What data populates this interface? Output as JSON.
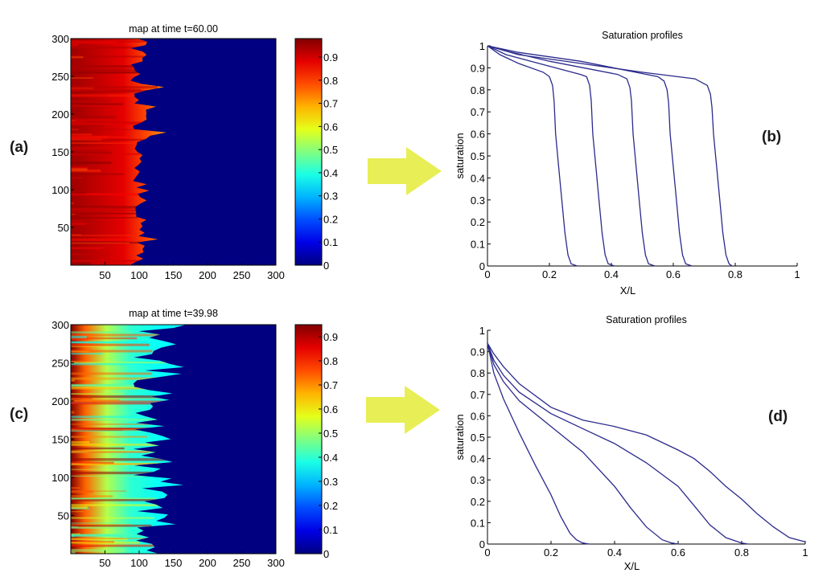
{
  "panel_labels": {
    "a": "(a)",
    "b": "(b)",
    "c": "(c)",
    "d": "(d)"
  },
  "arrow_color": "#e8ee55",
  "profile_color": "#2a2a8c",
  "chart_data": [
    {
      "id": "a",
      "type": "heatmap",
      "title": "map at time t=60.00",
      "x_ticks": [
        "50",
        "100",
        "150",
        "200",
        "250",
        "300"
      ],
      "y_ticks": [
        "300",
        "250",
        "200",
        "150",
        "100",
        "50"
      ],
      "xlim": [
        0,
        300
      ],
      "ylim": [
        0,
        300
      ],
      "colorbar": {
        "min": 0,
        "max": 0.98,
        "ticks": [
          "0.9",
          "0.8",
          "0.7",
          "0.6",
          "0.5",
          "0.4",
          "0.3",
          "0.2",
          "0.1",
          "0"
        ],
        "colormap": "jet"
      },
      "front_x_approx": 100,
      "front_x_max": 140,
      "filled_value_range": [
        0.75,
        0.98
      ],
      "background_value": 0
    },
    {
      "id": "b",
      "type": "line",
      "title": "Saturation profiles",
      "xlabel": "X/L",
      "ylabel": "saturation",
      "x_ticks": [
        "0",
        "0.2",
        "0.4",
        "0.6",
        "0.8",
        "1"
      ],
      "y_ticks": [
        "1",
        "0.9",
        "0.8",
        "0.7",
        "0.6",
        "0.5",
        "0.4",
        "0.3",
        "0.2",
        "0.1",
        "0"
      ],
      "xlim": [
        0,
        1
      ],
      "ylim": [
        0,
        1
      ],
      "series": [
        {
          "x": [
            0,
            0.04,
            0.1,
            0.18,
            0.2,
            0.21,
            0.215,
            0.22,
            0.23,
            0.24,
            0.25,
            0.26,
            0.27,
            0.29
          ],
          "y": [
            1,
            0.96,
            0.92,
            0.88,
            0.86,
            0.82,
            0.75,
            0.6,
            0.45,
            0.3,
            0.15,
            0.05,
            0.01,
            0
          ]
        },
        {
          "x": [
            0,
            0.06,
            0.14,
            0.3,
            0.32,
            0.33,
            0.335,
            0.34,
            0.35,
            0.36,
            0.37,
            0.38,
            0.39,
            0.41
          ],
          "y": [
            1,
            0.96,
            0.93,
            0.87,
            0.86,
            0.82,
            0.75,
            0.6,
            0.45,
            0.3,
            0.15,
            0.05,
            0.01,
            0
          ]
        },
        {
          "x": [
            0,
            0.08,
            0.2,
            0.42,
            0.45,
            0.46,
            0.465,
            0.47,
            0.48,
            0.49,
            0.5,
            0.51,
            0.52,
            0.54
          ],
          "y": [
            1,
            0.97,
            0.93,
            0.87,
            0.85,
            0.81,
            0.75,
            0.6,
            0.45,
            0.3,
            0.15,
            0.05,
            0.01,
            0
          ]
        },
        {
          "x": [
            0,
            0.1,
            0.3,
            0.55,
            0.57,
            0.58,
            0.585,
            0.59,
            0.6,
            0.61,
            0.62,
            0.63,
            0.64,
            0.66
          ],
          "y": [
            1,
            0.97,
            0.93,
            0.86,
            0.84,
            0.8,
            0.74,
            0.6,
            0.45,
            0.3,
            0.15,
            0.05,
            0.01,
            0
          ]
        },
        {
          "x": [
            0,
            0.1,
            0.3,
            0.5,
            0.67,
            0.71,
            0.72,
            0.725,
            0.73,
            0.74,
            0.75,
            0.76,
            0.77,
            0.78,
            0.79
          ],
          "y": [
            1,
            0.96,
            0.92,
            0.88,
            0.85,
            0.82,
            0.78,
            0.72,
            0.6,
            0.45,
            0.3,
            0.15,
            0.05,
            0.01,
            0
          ]
        }
      ]
    },
    {
      "id": "c",
      "type": "heatmap",
      "title": "map at time t=39.98",
      "x_ticks": [
        "50",
        "100",
        "150",
        "200",
        "250",
        "300"
      ],
      "y_ticks": [
        "300",
        "250",
        "200",
        "150",
        "100",
        "50"
      ],
      "xlim": [
        0,
        300
      ],
      "ylim": [
        0,
        300
      ],
      "colorbar": {
        "min": 0,
        "max": 0.95,
        "ticks": [
          "0.9",
          "0.8",
          "0.7",
          "0.6",
          "0.5",
          "0.4",
          "0.3",
          "0.2",
          "0.1",
          "0"
        ],
        "colormap": "jet"
      },
      "front_x_approx": 120,
      "front_x_max": 175,
      "filled_value_range": [
        0.3,
        0.95
      ],
      "background_value": 0
    },
    {
      "id": "d",
      "type": "line",
      "title": "Saturation profiles",
      "xlabel": "X/L",
      "ylabel": "saturation",
      "x_ticks": [
        "0",
        "0.2",
        "0.4",
        "0.6",
        "0.8",
        "1"
      ],
      "y_ticks": [
        "1",
        "0.9",
        "0.8",
        "0.7",
        "0.6",
        "0.5",
        "0.4",
        "0.3",
        "0.2",
        "0.1",
        "0"
      ],
      "xlim": [
        0,
        1
      ],
      "ylim": [
        0,
        1
      ],
      "series": [
        {
          "x": [
            0,
            0.02,
            0.05,
            0.1,
            0.15,
            0.2,
            0.23,
            0.26,
            0.28,
            0.3,
            0.32
          ],
          "y": [
            0.94,
            0.8,
            0.68,
            0.52,
            0.37,
            0.23,
            0.13,
            0.05,
            0.02,
            0.005,
            0
          ]
        },
        {
          "x": [
            0,
            0.02,
            0.05,
            0.1,
            0.2,
            0.3,
            0.4,
            0.45,
            0.5,
            0.55,
            0.58,
            0.6
          ],
          "y": [
            0.94,
            0.84,
            0.76,
            0.67,
            0.55,
            0.43,
            0.27,
            0.17,
            0.08,
            0.02,
            0.005,
            0
          ]
        },
        {
          "x": [
            0,
            0.02,
            0.05,
            0.1,
            0.2,
            0.3,
            0.4,
            0.5,
            0.6,
            0.65,
            0.7,
            0.75,
            0.8,
            0.82
          ],
          "y": [
            0.94,
            0.86,
            0.79,
            0.71,
            0.61,
            0.54,
            0.47,
            0.38,
            0.27,
            0.18,
            0.09,
            0.03,
            0.005,
            0
          ]
        },
        {
          "x": [
            0,
            0.02,
            0.05,
            0.1,
            0.2,
            0.3,
            0.4,
            0.5,
            0.6,
            0.65,
            0.7,
            0.75,
            0.8,
            0.85,
            0.9,
            0.95,
            1.0
          ],
          "y": [
            0.94,
            0.89,
            0.83,
            0.75,
            0.64,
            0.58,
            0.55,
            0.51,
            0.44,
            0.4,
            0.34,
            0.27,
            0.21,
            0.14,
            0.08,
            0.03,
            0.01
          ]
        }
      ]
    }
  ]
}
